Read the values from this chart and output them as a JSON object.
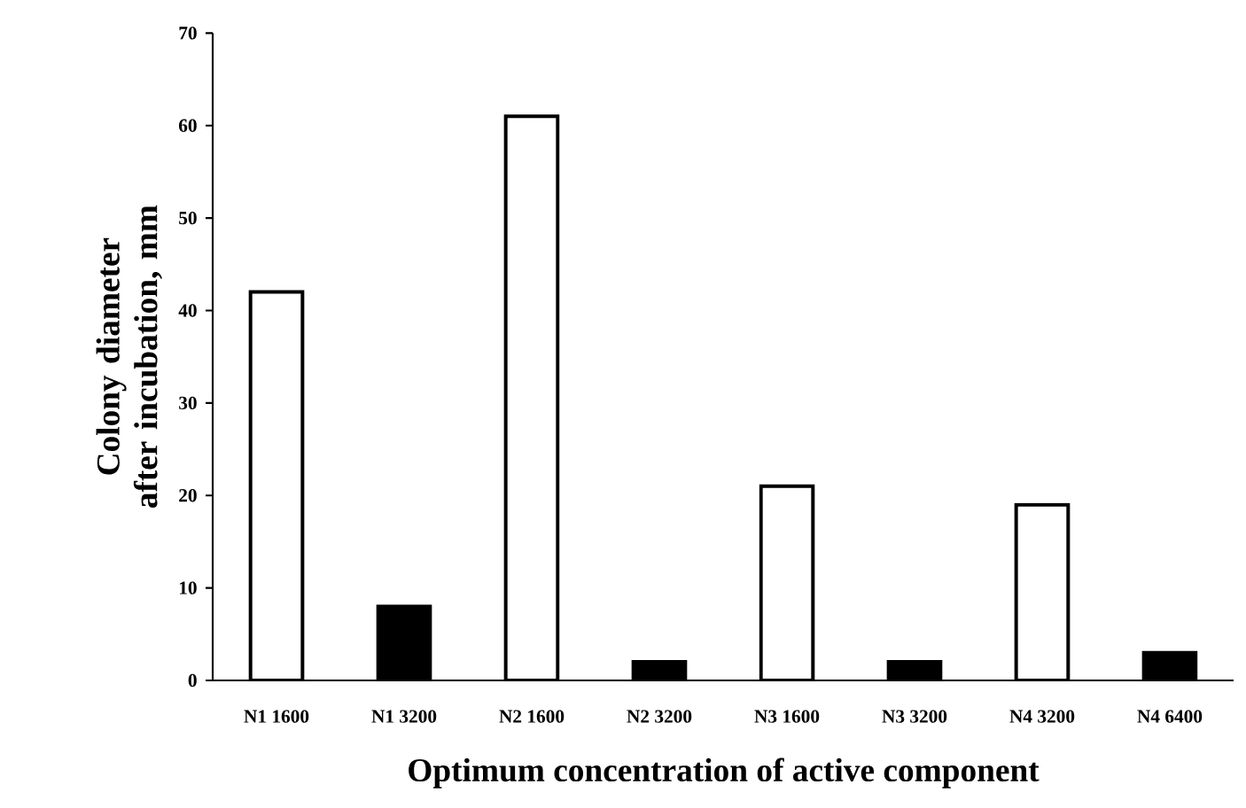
{
  "chart_data": {
    "type": "bar",
    "xlabel": "Optimum concentration of active component",
    "ylabel": "Colony diameter after incubation, mm",
    "categories": [
      "N1 1600",
      "N1 3200",
      "N2 1600",
      "N2 3200",
      "N3 1600",
      "N3 3200",
      "N4 3200",
      "N4 6400"
    ],
    "values": [
      42,
      8,
      61,
      2,
      21,
      2,
      19,
      3
    ],
    "colors": [
      "#ffffff",
      "#000000",
      "#ffffff",
      "#000000",
      "#ffffff",
      "#000000",
      "#ffffff",
      "#000000"
    ],
    "ylim": [
      0,
      70
    ],
    "yticks": [
      0,
      10,
      20,
      30,
      40,
      50,
      60,
      70
    ],
    "grid": false
  }
}
